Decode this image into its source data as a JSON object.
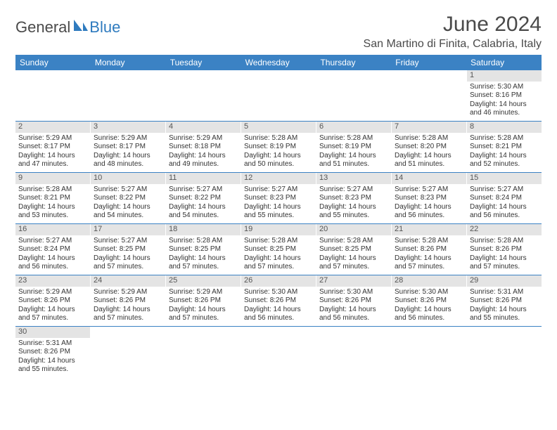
{
  "logo": {
    "text_general": "General",
    "text_blue": "Blue"
  },
  "header": {
    "month_title": "June 2024",
    "location": "San Martino di Finita, Calabria, Italy"
  },
  "colors": {
    "header_bg": "#3b82c4",
    "header_text": "#ffffff",
    "daynum_bg": "#e4e4e4",
    "daynum_text": "#555555",
    "body_text": "#333333",
    "row_divider": "#3b82c4",
    "title_text": "#4a4a4a"
  },
  "weekdays": [
    "Sunday",
    "Monday",
    "Tuesday",
    "Wednesday",
    "Thursday",
    "Friday",
    "Saturday"
  ],
  "weeks": [
    [
      {
        "empty": true
      },
      {
        "empty": true
      },
      {
        "empty": true
      },
      {
        "empty": true
      },
      {
        "empty": true
      },
      {
        "empty": true
      },
      {
        "day": "1",
        "sunrise": "Sunrise: 5:30 AM",
        "sunset": "Sunset: 8:16 PM",
        "daylight": "Daylight: 14 hours and 46 minutes."
      }
    ],
    [
      {
        "day": "2",
        "sunrise": "Sunrise: 5:29 AM",
        "sunset": "Sunset: 8:17 PM",
        "daylight": "Daylight: 14 hours and 47 minutes."
      },
      {
        "day": "3",
        "sunrise": "Sunrise: 5:29 AM",
        "sunset": "Sunset: 8:17 PM",
        "daylight": "Daylight: 14 hours and 48 minutes."
      },
      {
        "day": "4",
        "sunrise": "Sunrise: 5:29 AM",
        "sunset": "Sunset: 8:18 PM",
        "daylight": "Daylight: 14 hours and 49 minutes."
      },
      {
        "day": "5",
        "sunrise": "Sunrise: 5:28 AM",
        "sunset": "Sunset: 8:19 PM",
        "daylight": "Daylight: 14 hours and 50 minutes."
      },
      {
        "day": "6",
        "sunrise": "Sunrise: 5:28 AM",
        "sunset": "Sunset: 8:19 PM",
        "daylight": "Daylight: 14 hours and 51 minutes."
      },
      {
        "day": "7",
        "sunrise": "Sunrise: 5:28 AM",
        "sunset": "Sunset: 8:20 PM",
        "daylight": "Daylight: 14 hours and 51 minutes."
      },
      {
        "day": "8",
        "sunrise": "Sunrise: 5:28 AM",
        "sunset": "Sunset: 8:21 PM",
        "daylight": "Daylight: 14 hours and 52 minutes."
      }
    ],
    [
      {
        "day": "9",
        "sunrise": "Sunrise: 5:28 AM",
        "sunset": "Sunset: 8:21 PM",
        "daylight": "Daylight: 14 hours and 53 minutes."
      },
      {
        "day": "10",
        "sunrise": "Sunrise: 5:27 AM",
        "sunset": "Sunset: 8:22 PM",
        "daylight": "Daylight: 14 hours and 54 minutes."
      },
      {
        "day": "11",
        "sunrise": "Sunrise: 5:27 AM",
        "sunset": "Sunset: 8:22 PM",
        "daylight": "Daylight: 14 hours and 54 minutes."
      },
      {
        "day": "12",
        "sunrise": "Sunrise: 5:27 AM",
        "sunset": "Sunset: 8:23 PM",
        "daylight": "Daylight: 14 hours and 55 minutes."
      },
      {
        "day": "13",
        "sunrise": "Sunrise: 5:27 AM",
        "sunset": "Sunset: 8:23 PM",
        "daylight": "Daylight: 14 hours and 55 minutes."
      },
      {
        "day": "14",
        "sunrise": "Sunrise: 5:27 AM",
        "sunset": "Sunset: 8:23 PM",
        "daylight": "Daylight: 14 hours and 56 minutes."
      },
      {
        "day": "15",
        "sunrise": "Sunrise: 5:27 AM",
        "sunset": "Sunset: 8:24 PM",
        "daylight": "Daylight: 14 hours and 56 minutes."
      }
    ],
    [
      {
        "day": "16",
        "sunrise": "Sunrise: 5:27 AM",
        "sunset": "Sunset: 8:24 PM",
        "daylight": "Daylight: 14 hours and 56 minutes."
      },
      {
        "day": "17",
        "sunrise": "Sunrise: 5:27 AM",
        "sunset": "Sunset: 8:25 PM",
        "daylight": "Daylight: 14 hours and 57 minutes."
      },
      {
        "day": "18",
        "sunrise": "Sunrise: 5:28 AM",
        "sunset": "Sunset: 8:25 PM",
        "daylight": "Daylight: 14 hours and 57 minutes."
      },
      {
        "day": "19",
        "sunrise": "Sunrise: 5:28 AM",
        "sunset": "Sunset: 8:25 PM",
        "daylight": "Daylight: 14 hours and 57 minutes."
      },
      {
        "day": "20",
        "sunrise": "Sunrise: 5:28 AM",
        "sunset": "Sunset: 8:25 PM",
        "daylight": "Daylight: 14 hours and 57 minutes."
      },
      {
        "day": "21",
        "sunrise": "Sunrise: 5:28 AM",
        "sunset": "Sunset: 8:26 PM",
        "daylight": "Daylight: 14 hours and 57 minutes."
      },
      {
        "day": "22",
        "sunrise": "Sunrise: 5:28 AM",
        "sunset": "Sunset: 8:26 PM",
        "daylight": "Daylight: 14 hours and 57 minutes."
      }
    ],
    [
      {
        "day": "23",
        "sunrise": "Sunrise: 5:29 AM",
        "sunset": "Sunset: 8:26 PM",
        "daylight": "Daylight: 14 hours and 57 minutes."
      },
      {
        "day": "24",
        "sunrise": "Sunrise: 5:29 AM",
        "sunset": "Sunset: 8:26 PM",
        "daylight": "Daylight: 14 hours and 57 minutes."
      },
      {
        "day": "25",
        "sunrise": "Sunrise: 5:29 AM",
        "sunset": "Sunset: 8:26 PM",
        "daylight": "Daylight: 14 hours and 57 minutes."
      },
      {
        "day": "26",
        "sunrise": "Sunrise: 5:30 AM",
        "sunset": "Sunset: 8:26 PM",
        "daylight": "Daylight: 14 hours and 56 minutes."
      },
      {
        "day": "27",
        "sunrise": "Sunrise: 5:30 AM",
        "sunset": "Sunset: 8:26 PM",
        "daylight": "Daylight: 14 hours and 56 minutes."
      },
      {
        "day": "28",
        "sunrise": "Sunrise: 5:30 AM",
        "sunset": "Sunset: 8:26 PM",
        "daylight": "Daylight: 14 hours and 56 minutes."
      },
      {
        "day": "29",
        "sunrise": "Sunrise: 5:31 AM",
        "sunset": "Sunset: 8:26 PM",
        "daylight": "Daylight: 14 hours and 55 minutes."
      }
    ],
    [
      {
        "day": "30",
        "sunrise": "Sunrise: 5:31 AM",
        "sunset": "Sunset: 8:26 PM",
        "daylight": "Daylight: 14 hours and 55 minutes."
      },
      {
        "empty": true
      },
      {
        "empty": true
      },
      {
        "empty": true
      },
      {
        "empty": true
      },
      {
        "empty": true
      },
      {
        "empty": true
      }
    ]
  ]
}
